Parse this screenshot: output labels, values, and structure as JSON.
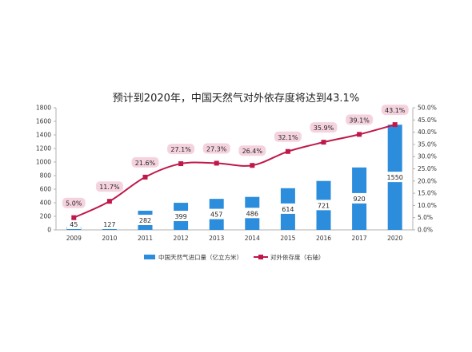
{
  "chart_data": {
    "type": "bar",
    "title": "预计到2020年，中国天然气对外依存度将达到43.1%",
    "categories": [
      "2009",
      "2010",
      "2011",
      "2012",
      "2013",
      "2014",
      "2015",
      "2016",
      "2017",
      "2020"
    ],
    "series": [
      {
        "name": "中国天然气进口量（亿立方米）",
        "type": "bar",
        "axis": "left",
        "values": [
          45,
          127,
          282,
          399,
          457,
          486,
          614,
          721,
          920,
          1550
        ],
        "data_labels": [
          "45",
          "127",
          "282",
          "399",
          "457",
          "486",
          "614",
          "721",
          "920",
          "1550"
        ]
      },
      {
        "name": "对外依存度（右轴）",
        "type": "line",
        "axis": "right",
        "values": [
          5.0,
          11.7,
          21.6,
          27.1,
          27.3,
          26.4,
          32.1,
          35.9,
          39.1,
          43.1
        ],
        "data_labels": [
          "5.0%",
          "11.7%",
          "21.6%",
          "27.1%",
          "27.3%",
          "26.4%",
          "32.1%",
          "35.9%",
          "39.1%",
          "43.1%"
        ]
      }
    ],
    "y_left": {
      "range": [
        0,
        1800
      ],
      "ticks": [
        "0",
        "200",
        "400",
        "600",
        "800",
        "1000",
        "1200",
        "1400",
        "1600",
        "1800"
      ]
    },
    "y_right": {
      "range": [
        0,
        50
      ],
      "ticks": [
        "0.0%",
        "5.0%",
        "10.0%",
        "15.0%",
        "20.0%",
        "25.0%",
        "30.0%",
        "35.0%",
        "40.0%",
        "45.0%",
        "50.0%"
      ]
    },
    "grid": false,
    "legend_position": "bottom",
    "colors": {
      "bar": "#2b8ddb",
      "bar_label_bg": "#ffffff",
      "line": "#c0184a",
      "rate_label_bg": "#f5d3de",
      "axis": "#b0b0b0"
    }
  }
}
